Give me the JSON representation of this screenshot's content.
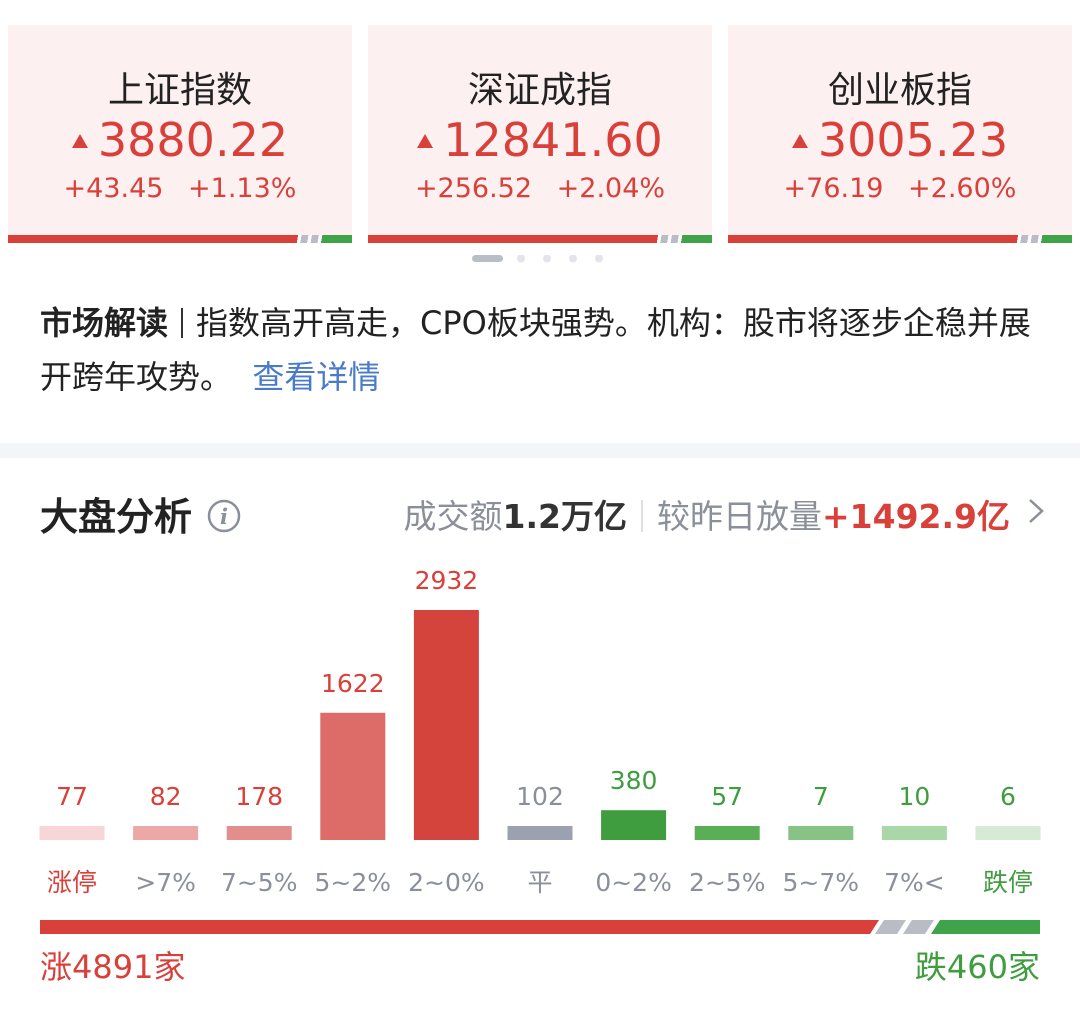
{
  "indices": [
    {
      "name": "上证指数",
      "value": "3880.22",
      "change": "+43.45",
      "percent": "+1.13%"
    },
    {
      "name": "深证成指",
      "value": "12841.60",
      "change": "+256.52",
      "percent": "+2.04%"
    },
    {
      "name": "创业板指",
      "value": "3005.23",
      "change": "+76.19",
      "percent": "+2.60%"
    }
  ],
  "commentary": {
    "label": "市场解读",
    "text": "指数高开高走，CPO板块强势。机构：股市将逐步企稳并展开跨年攻势。",
    "link": "查看详情"
  },
  "section": {
    "title": "大盘分析",
    "turnover_label": "成交额",
    "turnover": "1.2万亿",
    "compare_label": "较昨日放量",
    "compare": "+1492.9亿"
  },
  "chart_data": {
    "type": "bar",
    "categories": [
      "涨停",
      ">7%",
      "7~5%",
      "5~2%",
      "2~0%",
      "平",
      "0~2%",
      "2~5%",
      "5~7%",
      "7%<",
      "跌停"
    ],
    "values": [
      77,
      82,
      178,
      1622,
      2932,
      102,
      380,
      57,
      7,
      10,
      6
    ],
    "colors": [
      "#f6d6d6",
      "#eca8a7",
      "#e28e8d",
      "#dd6b68",
      "#d5433d",
      "#9ba1af",
      "#3f9d3f",
      "#59ae56",
      "#87c384",
      "#aad7a7",
      "#d6ebd4"
    ],
    "value_label_colors": [
      "#d9403a",
      "#d9403a",
      "#d9403a",
      "#d9403a",
      "#d9403a",
      "#8a8f99",
      "#3f9d3f",
      "#3f9d3f",
      "#3f9d3f",
      "#3f9d3f",
      "#3f9d3f"
    ],
    "category_label_colors": [
      "#d9403a",
      "#8a8f99",
      "#8a8f99",
      "#8a8f99",
      "#8a8f99",
      "#8a8f99",
      "#8a8f99",
      "#8a8f99",
      "#8a8f99",
      "#8a8f99",
      "#3f9d3f"
    ]
  },
  "summary": {
    "up": "涨4891家",
    "down": "跌460家"
  }
}
